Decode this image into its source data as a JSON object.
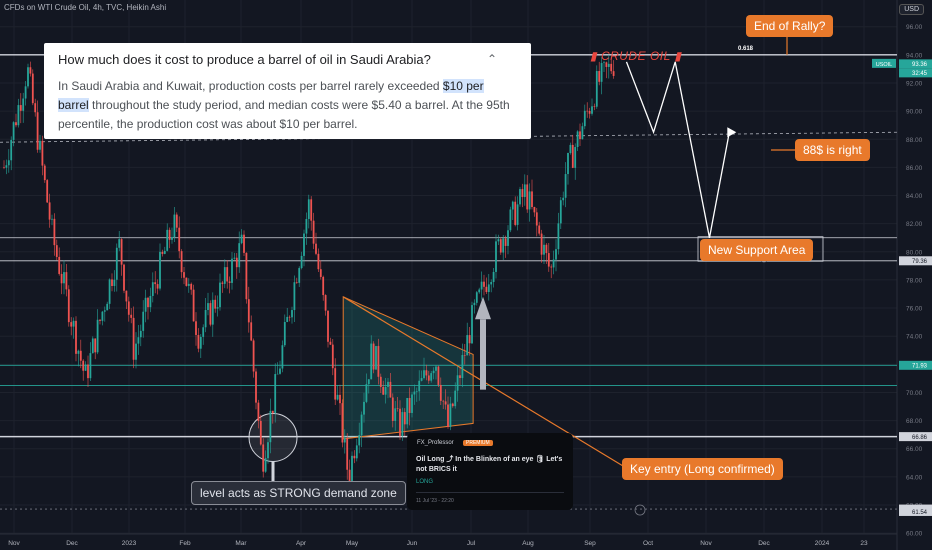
{
  "header": {
    "title": "CFDs on WTI Crude Oil, 4h, TVC, Heikin Ashi",
    "currency": "USD"
  },
  "faq": {
    "question": "How much does it cost to produce a barrel of oil in Saudi Arabia?",
    "answer_pre": "In Saudi Arabia and Kuwait, production costs per barrel rarely exceeded ",
    "answer_highlight": "$10 per barrel",
    "answer_post": " throughout the study period, and median costs were $5.40 a barrel. At the 95th percentile, the production cost was about $10 per barrel."
  },
  "annotations": {
    "end_of_rally": "End of Rally?",
    "eighty_eight": "88$ is right",
    "new_support": "New Support Area",
    "key_entry": "Key entry (Long confirmed)",
    "demand_zone": "level acts as STRONG demand zone",
    "crude_oil": "CRUDE OIL",
    "fib_level": "0.618"
  },
  "idea_card": {
    "author": "FX_Professor",
    "badge": "PREMIUM",
    "title": "Oil Long ⤴ In the Blinken of an eye 🛢 Let's not BRICS it",
    "tag": "LONG",
    "date": "11 Jul '23 - 22:20"
  },
  "symbol_label": {
    "ticker": "USOIL",
    "price": "93.36",
    "countdown": "32:45"
  },
  "colors": {
    "up": "#26a69a",
    "down": "#ef5350",
    "accent": "#e8792b",
    "background": "#131722",
    "grid": "#1e222d"
  },
  "chart_data": {
    "type": "candlestick",
    "title": "CFDs on WTI Crude Oil, 4h, TVC, Heikin Ashi",
    "ylim": [
      58.8,
      97.9
    ],
    "y_ticks": [
      60,
      62,
      64,
      66,
      68,
      70,
      72,
      74,
      76,
      78,
      80,
      82,
      84,
      86,
      88,
      90,
      92,
      94,
      96
    ],
    "x_ticks": [
      "Nov",
      "Dec",
      "2023",
      "Feb",
      "Mar",
      "Apr",
      "May",
      "Jun",
      "Jul",
      "Aug",
      "Sep",
      "Oct",
      "Nov",
      "Dec",
      "2024",
      "23"
    ],
    "price_path": [
      {
        "date": "2022-10-25",
        "close": 86
      },
      {
        "date": "2022-11-07",
        "close": 93
      },
      {
        "date": "2022-11-21",
        "close": 81
      },
      {
        "date": "2022-12-09",
        "close": 71
      },
      {
        "date": "2022-12-28",
        "close": 80.5
      },
      {
        "date": "2023-01-05",
        "close": 73
      },
      {
        "date": "2023-01-27",
        "close": 82
      },
      {
        "date": "2023-02-10",
        "close": 74
      },
      {
        "date": "2023-03-06",
        "close": 80.5
      },
      {
        "date": "2023-03-17",
        "close": 65
      },
      {
        "date": "2023-03-31",
        "close": 75
      },
      {
        "date": "2023-04-12",
        "close": 83.4
      },
      {
        "date": "2023-05-04",
        "close": 64
      },
      {
        "date": "2023-05-17",
        "close": 73
      },
      {
        "date": "2023-06-01",
        "close": 67.5
      },
      {
        "date": "2023-06-21",
        "close": 72.5
      },
      {
        "date": "2023-06-28",
        "close": 67.5
      },
      {
        "date": "2023-07-12",
        "close": 75.5
      },
      {
        "date": "2023-07-28",
        "close": 81
      },
      {
        "date": "2023-08-10",
        "close": 84.3
      },
      {
        "date": "2023-08-24",
        "close": 78.5
      },
      {
        "date": "2023-09-01",
        "close": 85.5
      },
      {
        "date": "2023-09-19",
        "close": 92
      },
      {
        "date": "2023-09-28",
        "close": 93.4
      }
    ],
    "horizontal_levels": [
      {
        "label": "94.00",
        "price": 94.0
      },
      {
        "label": "81.0",
        "price": 81.0
      },
      {
        "label": "79.36",
        "price": 79.36
      },
      {
        "label": "71.93",
        "price": 71.93
      },
      {
        "label": "70.5",
        "price": 70.5
      },
      {
        "label": "66.86",
        "price": 66.86
      },
      {
        "label": "61.71",
        "price": 61.71
      }
    ],
    "dashed_level": 88.5,
    "price_labels": [
      {
        "text": "93.36",
        "price": 93.36,
        "bg": "#26a69a"
      },
      {
        "text": "79.36",
        "price": 79.36,
        "bg": "#d1d4dc"
      },
      {
        "text": "71.93",
        "price": 71.93,
        "bg": "#26a69a"
      },
      {
        "text": "66.86",
        "price": 66.86,
        "bg": "#d1d4dc"
      },
      {
        "text": "61.71",
        "price": 61.71,
        "bg": "#d1d4dc"
      },
      {
        "text": "61.54",
        "price": 61.54,
        "bg": "#d1d4dc"
      }
    ],
    "projection_path": [
      {
        "date": "2023-10-05",
        "price": 93.5
      },
      {
        "date": "2023-10-20",
        "price": 88.5
      },
      {
        "date": "2023-11-01",
        "price": 93.5
      },
      {
        "date": "2023-11-20",
        "price": 81
      },
      {
        "date": "2023-12-01",
        "price": 88.5
      }
    ],
    "triangle": {
      "start": "2023-05-01",
      "end": "2023-07-12",
      "top": 76.8,
      "bottom": 67.5
    }
  }
}
